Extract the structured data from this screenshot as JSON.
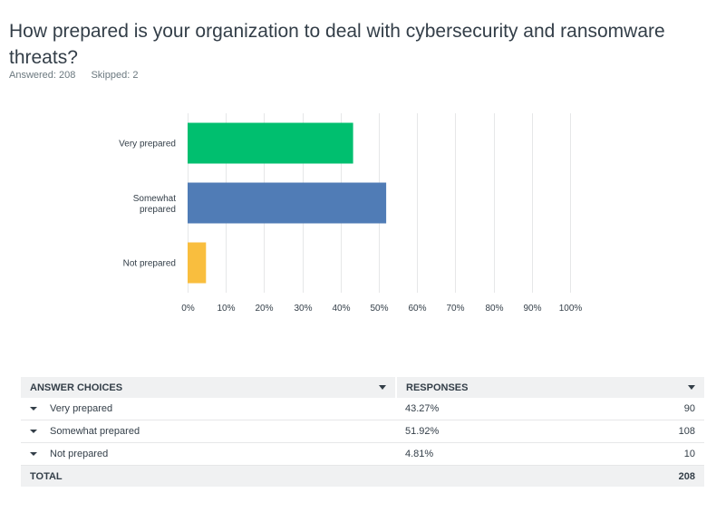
{
  "question": {
    "title": "How prepared is your organization to deal with cybersecurity and ransomware threats?",
    "answered": "Answered: 208",
    "skipped": "Skipped: 2"
  },
  "chart_data": {
    "type": "bar",
    "orientation": "horizontal",
    "categories": [
      "Very prepared",
      "Somewhat prepared",
      "Not prepared"
    ],
    "values": [
      43.27,
      51.92,
      4.81
    ],
    "colors": [
      "#00bf6f",
      "#507cb6",
      "#f9be3e"
    ],
    "xlim": [
      0,
      100
    ],
    "x_ticks": [
      "0%",
      "10%",
      "20%",
      "30%",
      "40%",
      "50%",
      "60%",
      "70%",
      "80%",
      "90%",
      "100%"
    ],
    "grid": true
  },
  "table": {
    "headers": [
      "ANSWER CHOICES",
      "RESPONSES"
    ],
    "rows": [
      {
        "choice": "Very prepared",
        "percent": "43.27%",
        "count": "90"
      },
      {
        "choice": "Somewhat prepared",
        "percent": "51.92%",
        "count": "108"
      },
      {
        "choice": "Not prepared",
        "percent": "4.81%",
        "count": "10"
      }
    ],
    "total_label": "TOTAL",
    "total_count": "208"
  }
}
